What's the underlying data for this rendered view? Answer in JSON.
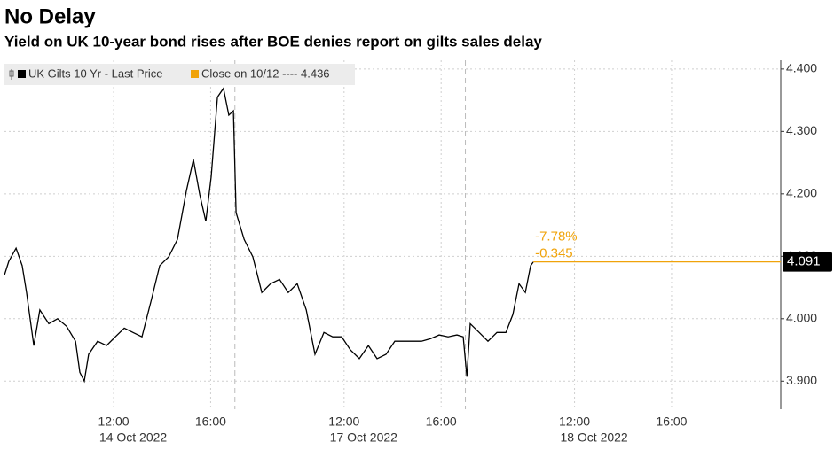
{
  "chart_data": {
    "type": "line",
    "title": "No Delay",
    "subtitle": "Yield on UK 10-year bond rises after BOE denies report on gilts sales delay",
    "x": [
      0,
      0.18,
      0.48,
      0.73,
      0.91,
      1.21,
      1.46,
      1.83,
      2.19,
      2.56,
      2.93,
      3.11,
      3.29,
      3.47,
      3.84,
      4.21,
      4.57,
      4.94,
      5.3,
      5.67,
      6.04,
      6.4,
      6.77,
      7.13,
      7.5,
      7.79,
      8.05,
      8.3,
      8.52,
      8.78,
      9.03,
      9.25,
      9.44,
      9.55,
      9.88,
      10.24,
      10.61,
      10.97,
      11.34,
      11.7,
      12.07,
      12.44,
      12.8,
      13.17,
      13.53,
      13.9,
      14.26,
      14.63,
      15.0,
      15.36,
      15.73,
      16.09,
      16.46,
      16.83,
      17.19,
      17.56,
      17.92,
      18.29,
      18.65,
      18.91,
      19.06,
      19.2,
      19.57,
      19.93,
      20.3,
      20.67,
      20.96,
      21.21,
      21.47,
      21.69,
      21.8
    ],
    "series": [
      {
        "name": "UK Gilts 10 Yr - Last Price",
        "color": "#000000",
        "values": [
          4.07,
          4.092,
          4.113,
          4.085,
          4.042,
          3.957,
          4.014,
          3.992,
          4.0,
          3.988,
          3.964,
          3.914,
          3.9,
          3.943,
          3.964,
          3.957,
          3.971,
          3.985,
          3.978,
          3.971,
          4.028,
          4.085,
          4.099,
          4.127,
          4.205,
          4.255,
          4.199,
          4.156,
          4.227,
          4.355,
          4.369,
          4.326,
          4.333,
          4.17,
          4.127,
          4.099,
          4.042,
          4.056,
          4.063,
          4.042,
          4.056,
          4.014,
          3.943,
          3.978,
          3.971,
          3.971,
          3.95,
          3.936,
          3.957,
          3.936,
          3.943,
          3.964,
          3.964,
          3.964,
          3.964,
          3.968,
          3.974,
          3.971,
          3.974,
          3.971,
          3.907,
          3.992,
          3.978,
          3.964,
          3.978,
          3.978,
          4.007,
          4.056,
          4.042,
          4.085,
          4.091
        ]
      }
    ],
    "reference": {
      "name": "Close on 10/12 ---- 4.436",
      "value": 4.436,
      "color": "#f0a30a"
    },
    "last_value": 4.091,
    "annotations": [
      "-7.78%",
      "-0.345"
    ],
    "annotation_color": "#f0a30a",
    "session_breaks": [
      9.5,
      19
    ],
    "xlim": [
      0,
      32
    ],
    "ylim": [
      3.855,
      4.414
    ],
    "xticks": [
      {
        "value": 4.5,
        "label": "12:00",
        "date": "14 Oct 2022"
      },
      {
        "value": 8.5,
        "label": "16:00"
      },
      {
        "value": 14,
        "label": "12:00",
        "date": "17 Oct 2022"
      },
      {
        "value": 18,
        "label": "16:00"
      },
      {
        "value": 23.5,
        "label": "12:00",
        "date": "18 Oct 2022"
      },
      {
        "value": 27.5,
        "label": "16:00"
      }
    ],
    "yticks": [
      {
        "value": 3.9,
        "label": "3.900"
      },
      {
        "value": 4.0,
        "label": "4.000"
      },
      {
        "value": 4.1,
        "label": "4.100"
      },
      {
        "value": 4.2,
        "label": "4.200"
      },
      {
        "value": 4.3,
        "label": "4.300"
      },
      {
        "value": 4.4,
        "label": "4.400"
      }
    ],
    "grid": true
  }
}
